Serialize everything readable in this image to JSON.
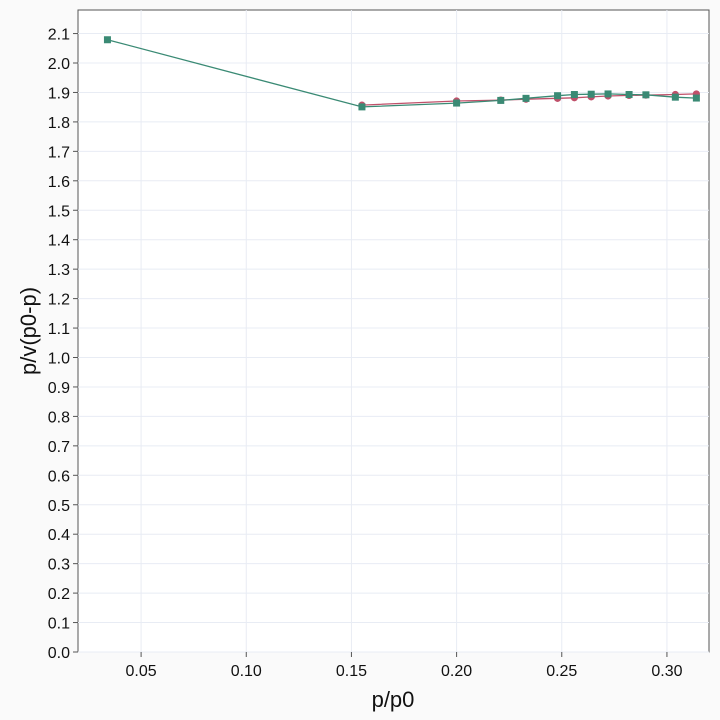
{
  "chart_data": {
    "type": "line",
    "xlabel": "p/p0",
    "ylabel": "p/v(p0-p)",
    "xlim": [
      0.02,
      0.32
    ],
    "ylim": [
      0.0,
      2.18
    ],
    "xticks": [
      "0.05",
      "0.10",
      "0.15",
      "0.20",
      "0.25",
      "0.30"
    ],
    "yticks": [
      "0.0",
      "0.1",
      "0.2",
      "0.3",
      "0.4",
      "0.5",
      "0.6",
      "0.7",
      "0.8",
      "0.9",
      "1.0",
      "1.1",
      "1.2",
      "1.3",
      "1.4",
      "1.5",
      "1.6",
      "1.7",
      "1.8",
      "1.9",
      "2.0",
      "2.1"
    ],
    "grid": true,
    "series": [
      {
        "marker": "circle",
        "color": "#c0506a",
        "x": [
          0.155,
          0.2,
          0.221,
          0.233,
          0.248,
          0.256,
          0.264,
          0.272,
          0.282,
          0.29,
          0.304,
          0.314
        ],
        "y": [
          1.857,
          1.871,
          1.874,
          1.877,
          1.88,
          1.882,
          1.885,
          1.888,
          1.89,
          1.891,
          1.893,
          1.895
        ]
      },
      {
        "marker": "square",
        "color": "#3a8a74",
        "x": [
          0.034,
          0.155,
          0.2,
          0.221,
          0.233,
          0.248,
          0.256,
          0.264,
          0.272,
          0.282,
          0.29,
          0.304,
          0.314
        ],
        "y": [
          2.079,
          1.851,
          1.864,
          1.873,
          1.88,
          1.889,
          1.893,
          1.894,
          1.895,
          1.893,
          1.892,
          1.884,
          1.881
        ]
      }
    ]
  }
}
